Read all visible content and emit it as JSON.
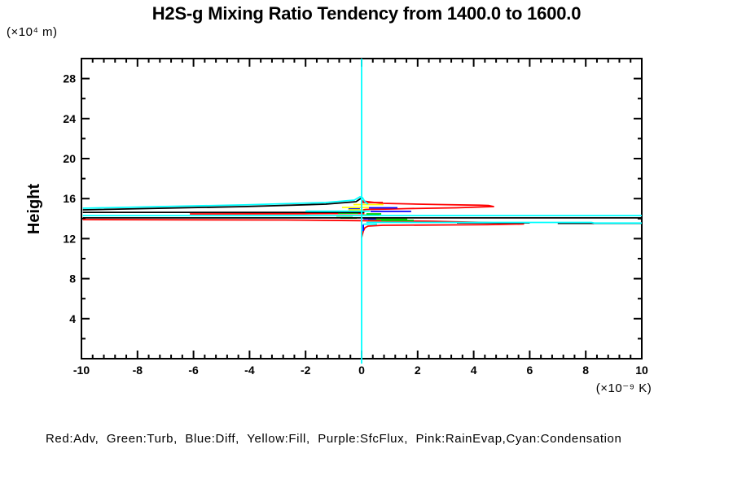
{
  "title": "H2S-g Mixing Ratio Tendency from 1400.0 to 1600.0",
  "y_axis_unit": "(×10⁴ m)",
  "y_axis_label": "Height",
  "x_axis_unit": "(×10⁻⁹ K)",
  "legend": "Red:Adv,  Green:Turb,  Blue:Diff,  Yellow:Fill,  Purple:SfcFlux,  Pink:RainEvap,Cyan:Condensation",
  "chart_data": {
    "type": "line",
    "title": "H2S-g Mixing Ratio Tendency from 1400.0 to 1600.0",
    "xlabel": "(×10⁻⁹ K)",
    "ylabel": "Height (×10⁴ m)",
    "xlim": [
      -10,
      10
    ],
    "ylim": [
      0,
      30
    ],
    "x_major_ticks": [
      -10,
      -8,
      -6,
      -4,
      -2,
      0,
      2,
      4,
      6,
      8,
      10
    ],
    "x_minor_step": 0.4,
    "y_major_ticks": [
      4,
      8,
      12,
      16,
      20,
      24,
      28
    ],
    "y_minor_step": 2,
    "grid": false,
    "legend_position": "bottom-text-line",
    "axis_color": "#000000",
    "series": [
      {
        "name": "Adv",
        "color": "#ff0000",
        "segments": [
          [
            [
              0.0,
              15.77
            ],
            [
              0.5,
              15.6
            ],
            [
              0.76,
              15.53
            ],
            [
              2.0,
              15.45
            ],
            [
              2.79,
              15.41
            ],
            [
              4.2,
              15.34
            ],
            [
              4.53,
              15.32
            ],
            [
              4.71,
              15.2
            ],
            [
              3.37,
              15.08
            ],
            [
              1.6,
              15.0
            ],
            [
              1.05,
              14.96
            ],
            [
              0.17,
              14.92
            ],
            [
              0.05,
              14.88
            ]
          ],
          [
            [
              -6.13,
              14.47
            ],
            [
              -2.0,
              14.49
            ],
            [
              -0.26,
              14.51
            ],
            [
              0.1,
              14.51
            ]
          ],
          [
            [
              0.03,
              15.61
            ],
            [
              0.76,
              15.61
            ]
          ],
          [
            [
              -9.95,
              13.9
            ],
            [
              -2.73,
              13.86
            ],
            [
              0.0,
              13.8
            ],
            [
              2.5,
              13.74
            ],
            [
              4.5,
              13.6
            ],
            [
              5.78,
              13.46
            ],
            [
              4.5,
              13.4
            ],
            [
              3.37,
              13.37
            ],
            [
              0.76,
              13.33
            ],
            [
              0.23,
              13.25
            ],
            [
              0.12,
              13.09
            ],
            [
              0.06,
              12.76
            ],
            [
              0.03,
              12.44
            ],
            [
              0.0,
              12.11
            ]
          ]
        ]
      },
      {
        "name": "Turb",
        "color": "#00cc00",
        "segments": [
          [
            [
              -0.84,
              14.55
            ],
            [
              -0.12,
              14.55
            ]
          ],
          [
            [
              0.17,
              14.47
            ],
            [
              0.7,
              14.47
            ]
          ],
          [
            [
              -0.9,
              14.27
            ],
            [
              -0.32,
              14.27
            ]
          ],
          [
            [
              -0.03,
              14.35
            ],
            [
              0.64,
              14.35
            ]
          ],
          [
            [
              -0.76,
              14.06
            ],
            [
              -0.17,
              14.06
            ]
          ],
          [
            [
              0.23,
              13.94
            ],
            [
              1.63,
              13.94
            ]
          ],
          [
            [
              0.7,
              13.82
            ],
            [
              1.86,
              13.82
            ]
          ]
        ]
      },
      {
        "name": "Diff",
        "color": "#0000ff",
        "segments": [
          [
            [
              0.26,
              15.08
            ],
            [
              1.28,
              15.08
            ]
          ],
          [
            [
              -0.47,
              14.96
            ],
            [
              -0.06,
              14.96
            ]
          ],
          [
            [
              0.32,
              14.72
            ],
            [
              1.77,
              14.72
            ]
          ],
          [
            [
              0.06,
              13.98
            ],
            [
              0.52,
              13.98
            ]
          ],
          [
            [
              0.06,
              13.41
            ],
            [
              0.06,
              12.76
            ]
          ]
        ]
      },
      {
        "name": "Fill",
        "color": "#ffff00",
        "segments": [
          [
            [
              -0.29,
              15.41
            ],
            [
              0.78,
              15.41
            ]
          ],
          [
            [
              -0.7,
              15.12
            ],
            [
              0.26,
              15.12
            ]
          ],
          [
            [
              -0.47,
              14.88
            ],
            [
              0.06,
              14.88
            ]
          ]
        ]
      },
      {
        "name": "SfcFlux",
        "color": "#aa00ff",
        "segments": [
          [
            [
              0,
              13.0
            ],
            [
              0,
              15.5
            ]
          ]
        ]
      },
      {
        "name": "RainEvap",
        "color": "#ff88cc",
        "segments": [
          [
            [
              0,
              12.6
            ],
            [
              0,
              15.7
            ]
          ]
        ]
      },
      {
        "name": "unlabeled-total",
        "color": "#000000",
        "segments": [
          [
            [
              -9.95,
              14.88
            ],
            [
              -4.19,
              15.2
            ],
            [
              -1.28,
              15.45
            ],
            [
              -0.2,
              15.69
            ],
            [
              -0.03,
              16.02
            ]
          ],
          [
            [
              -9.95,
              14.63
            ],
            [
              0.1,
              14.63
            ]
          ],
          [
            [
              -9.95,
              14.07
            ],
            [
              10.0,
              14.07
            ]
          ],
          [
            [
              3.4,
              13.58
            ],
            [
              6.0,
              13.58
            ]
          ],
          [
            [
              7.0,
              13.53
            ],
            [
              10.0,
              13.53
            ]
          ]
        ]
      },
      {
        "name": "Condensation",
        "color": "#00ffff",
        "segments": [
          [
            [
              0,
              -0.5
            ],
            [
              0,
              30
            ]
          ],
          [
            [
              -9.95,
              15.04
            ],
            [
              -4.19,
              15.37
            ],
            [
              -1.28,
              15.61
            ],
            [
              -0.26,
              15.85
            ],
            [
              -0.06,
              16.18
            ],
            [
              0.03,
              16.1
            ],
            [
              0.12,
              15.69
            ],
            [
              0.23,
              15.45
            ]
          ],
          [
            [
              -2.0,
              14.74
            ],
            [
              0.3,
              14.74
            ]
          ],
          [
            [
              -9.95,
              14.31
            ],
            [
              10.0,
              14.31
            ]
          ],
          [
            [
              0.17,
              13.62
            ],
            [
              8.2,
              13.62
            ],
            [
              8.3,
              13.55
            ],
            [
              10.0,
              13.55
            ]
          ],
          [
            [
              0.06,
              13.45
            ],
            [
              0.55,
              13.45
            ]
          ]
        ]
      }
    ]
  }
}
